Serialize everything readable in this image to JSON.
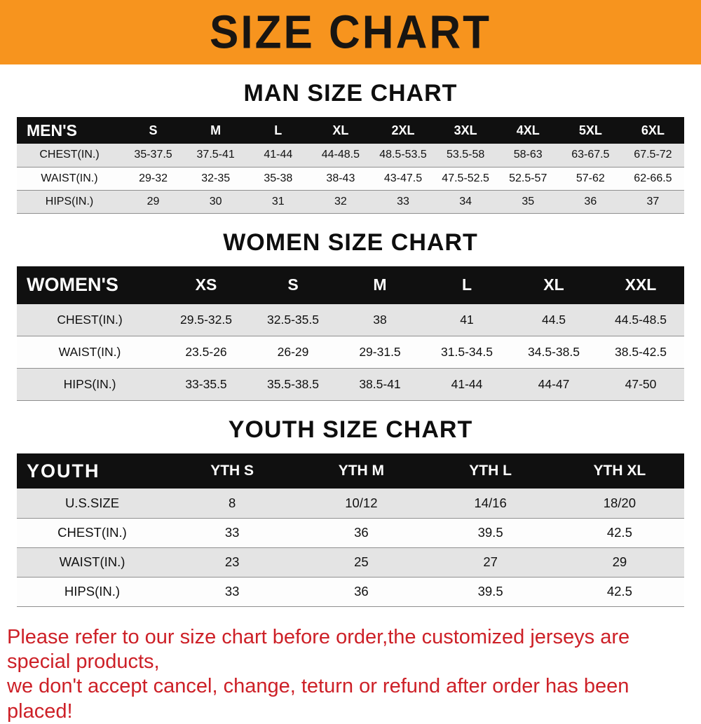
{
  "banner": {
    "title": "SIZE CHART",
    "bg": "#f7941e",
    "text_color": "#181512"
  },
  "sections": [
    {
      "title": "MAN SIZE CHART",
      "header_label": "MEN'S",
      "columns": [
        "S",
        "M",
        "L",
        "XL",
        "2XL",
        "3XL",
        "4XL",
        "5XL",
        "6XL"
      ],
      "rows": [
        {
          "label": "CHEST(IN.)",
          "values": [
            "35-37.5",
            "37.5-41",
            "41-44",
            "44-48.5",
            "48.5-53.5",
            "53.5-58",
            "58-63",
            "63-67.5",
            "67.5-72"
          ]
        },
        {
          "label": "WAIST(IN.)",
          "values": [
            "29-32",
            "32-35",
            "35-38",
            "38-43",
            "43-47.5",
            "47.5-52.5",
            "52.5-57",
            "57-62",
            "62-66.5"
          ]
        },
        {
          "label": "HIPS(IN.)",
          "values": [
            "29",
            "30",
            "31",
            "32",
            "33",
            "34",
            "35",
            "36",
            "37"
          ]
        }
      ]
    },
    {
      "title": "WOMEN SIZE CHART",
      "header_label": "WOMEN'S",
      "columns": [
        "XS",
        "S",
        "M",
        "L",
        "XL",
        "XXL"
      ],
      "rows": [
        {
          "label": "CHEST(IN.)",
          "values": [
            "29.5-32.5",
            "32.5-35.5",
            "38",
            "41",
            "44.5",
            "44.5-48.5"
          ]
        },
        {
          "label": "WAIST(IN.)",
          "values": [
            "23.5-26",
            "26-29",
            "29-31.5",
            "31.5-34.5",
            "34.5-38.5",
            "38.5-42.5"
          ]
        },
        {
          "label": "HIPS(IN.)",
          "values": [
            "33-35.5",
            "35.5-38.5",
            "38.5-41",
            "41-44",
            "44-47",
            "47-50"
          ]
        }
      ]
    },
    {
      "title": "YOUTH SIZE CHART",
      "header_label": "YOUTH",
      "columns": [
        "YTH S",
        "YTH M",
        "YTH L",
        "YTH XL"
      ],
      "rows": [
        {
          "label": "U.S.SIZE",
          "values": [
            "8",
            "10/12",
            "14/16",
            "18/20"
          ]
        },
        {
          "label": "CHEST(IN.)",
          "values": [
            "33",
            "36",
            "39.5",
            "42.5"
          ]
        },
        {
          "label": "WAIST(IN.)",
          "values": [
            "23",
            "25",
            "27",
            "29"
          ]
        },
        {
          "label": "HIPS(IN.)",
          "values": [
            "33",
            "36",
            "39.5",
            "42.5"
          ]
        }
      ]
    }
  ],
  "footer": {
    "line1": "Please refer to our size chart before order,the customized jerseys are special products,",
    "line2": "we don't accept cancel, change, teturn or refund after order has been placed!",
    "text_color": "#cd2027"
  }
}
